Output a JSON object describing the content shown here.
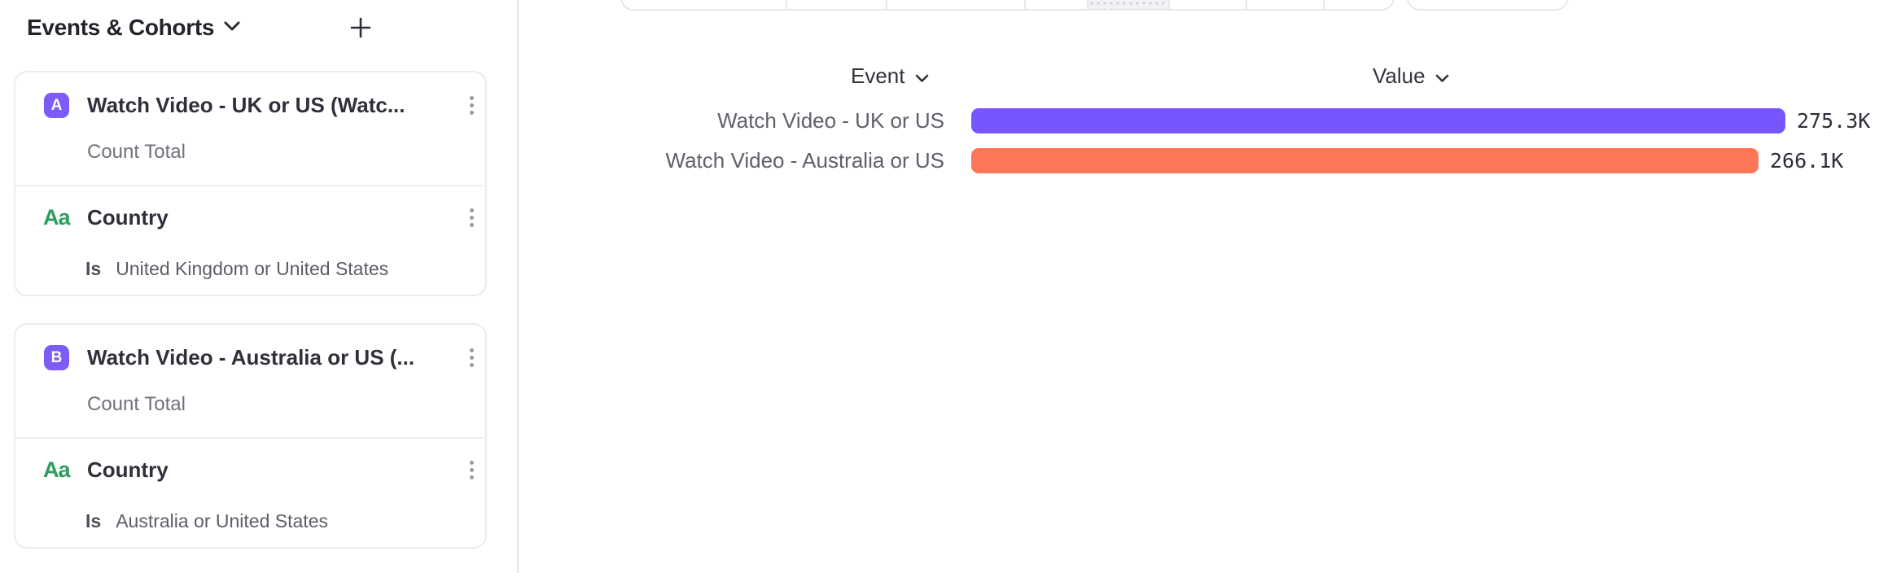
{
  "colors": {
    "series_a_purple": "#7856FF",
    "series_b_orange": "#FF7557",
    "badge_purple": "#7C5BF7",
    "string_property_green": "#2A9D5F"
  },
  "sidebar": {
    "title": "Events & Cohorts",
    "add_button": "+",
    "cards": [
      {
        "badge": "A",
        "title": "Watch Video - UK or US (Watc...",
        "measure": "Count Total",
        "filter": {
          "type_icon": "Aa",
          "name": "Country",
          "operator": "Is",
          "value": "United Kingdom or United States"
        }
      },
      {
        "badge": "B",
        "title": "Watch Video - Australia or US (...",
        "measure": "Count Total",
        "filter": {
          "type_icon": "Aa",
          "name": "Country",
          "operator": "Is",
          "value": "Australia or United States"
        }
      }
    ]
  },
  "main": {
    "columns": {
      "event": "Event",
      "value": "Value"
    }
  },
  "chart_data": {
    "type": "bar",
    "orientation": "horizontal",
    "columns": [
      "Event",
      "Value"
    ],
    "categories": [
      "Watch Video - UK or US",
      "Watch Video - Australia or US"
    ],
    "values": [
      275300,
      266100
    ],
    "value_labels": [
      "275.3K",
      "266.1K"
    ],
    "series_colors": [
      "#7856FF",
      "#FF7557"
    ],
    "xlim": [
      0,
      275300
    ],
    "grid": false,
    "legend": false
  }
}
